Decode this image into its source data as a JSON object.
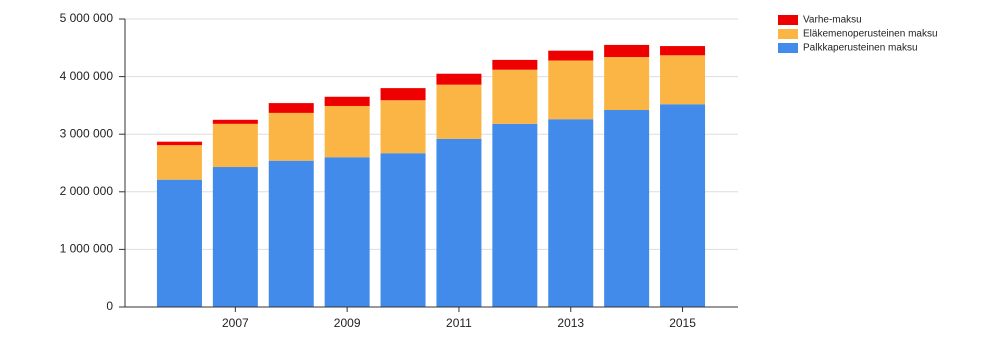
{
  "chart_data": {
    "type": "stacked_bar",
    "categories": [
      null,
      "2007",
      null,
      "2009",
      null,
      "2011",
      null,
      "2013",
      null,
      "2015"
    ],
    "series": [
      {
        "name": "Palkkaperusteinen maksu",
        "color": "#428bea",
        "values": [
          2210000,
          2430000,
          2540000,
          2600000,
          2670000,
          2920000,
          3180000,
          3260000,
          3420000,
          3520000
        ]
      },
      {
        "name": "Eläkemenoperusteinen maksu",
        "color": "#fbb545",
        "values": [
          600000,
          750000,
          830000,
          890000,
          920000,
          940000,
          940000,
          1020000,
          920000,
          850000
        ]
      },
      {
        "name": "Varhe-maksu",
        "color": "#ee0000",
        "values": [
          60000,
          70000,
          170000,
          160000,
          210000,
          190000,
          170000,
          170000,
          210000,
          160000
        ]
      }
    ],
    "ylim": [
      0,
      5000000
    ],
    "yticks": [
      0,
      {
        "value": 1000000,
        "label": "1 000 000"
      },
      {
        "value": 2000000,
        "label": "2 000 000"
      },
      {
        "value": 3000000,
        "label": "3 000 000"
      },
      {
        "value": 4000000,
        "label": "4 000 000"
      },
      {
        "value": 5000000,
        "label": "5 000 000"
      }
    ],
    "grid": true,
    "legend": "right"
  }
}
